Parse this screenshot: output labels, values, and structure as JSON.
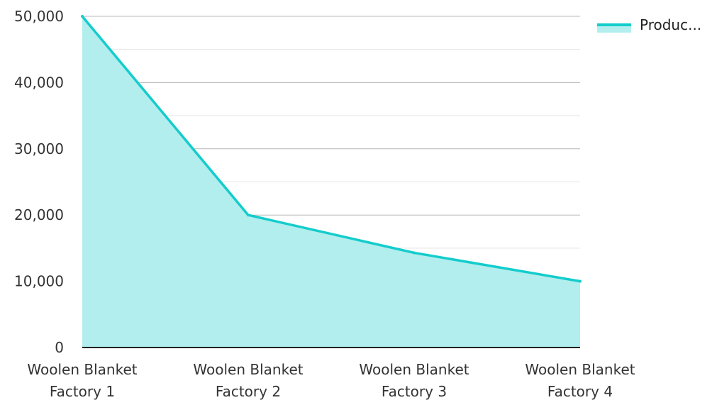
{
  "chart_data": {
    "type": "area",
    "categories": [
      [
        "Woolen Blanket",
        "Factory 1"
      ],
      [
        "Woolen Blanket",
        "Factory 2"
      ],
      [
        "Woolen Blanket",
        "Factory 3"
      ],
      [
        "Woolen Blanket",
        "Factory 4"
      ]
    ],
    "series": [
      {
        "name": "Produc...",
        "values": [
          50000,
          20000,
          14300,
          10000
        ]
      }
    ],
    "ylim": [
      0,
      50000
    ],
    "yticks": [
      "0",
      "10,000",
      "20,000",
      "30,000",
      "40,000",
      "50,000"
    ],
    "ytick_values": [
      0,
      10000,
      20000,
      30000,
      40000,
      50000
    ],
    "grid": true,
    "legend_position": "top-right",
    "colors": {
      "line": "#14cccc",
      "fill": "#b2eeee",
      "grid": "#cccccc",
      "axis": "#222222"
    }
  }
}
